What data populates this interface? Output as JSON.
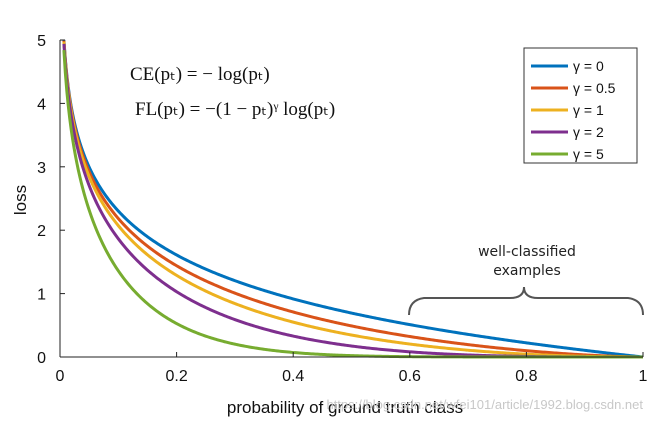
{
  "chart_data": {
    "type": "line",
    "x_range": [
      0,
      1
    ],
    "ylim": [
      0,
      5
    ],
    "xlabel": "probability of ground truth class",
    "ylabel": "loss",
    "x_ticks": [
      "0",
      "0.2",
      "0.4",
      "0.6",
      "0.8",
      "1"
    ],
    "y_ticks": [
      "0",
      "1",
      "2",
      "3",
      "4",
      "5"
    ],
    "grid": false,
    "legend_position": "top-right",
    "formulas": [
      "CE(pₜ) = − log(pₜ)",
      "FL(pₜ) = −(1 − pₜ)ᵞ log(pₜ)"
    ],
    "annotation": {
      "line1": "well-classified",
      "line2": "examples",
      "x_span": [
        0.6,
        1.0
      ]
    },
    "x": [
      0.0067,
      0.01,
      0.02,
      0.05,
      0.1,
      0.2,
      0.3,
      0.4,
      0.5,
      0.6,
      0.7,
      0.8,
      0.9,
      1.0
    ],
    "series": [
      {
        "name": "γ = 0",
        "gamma": 0,
        "color": "#0072BD",
        "values": [
          5.0,
          4.61,
          3.91,
          3.0,
          2.3,
          1.61,
          1.2,
          0.92,
          0.69,
          0.51,
          0.36,
          0.22,
          0.11,
          0.0
        ]
      },
      {
        "name": "γ = 0.5",
        "gamma": 0.5,
        "color": "#D95319",
        "values": [
          4.98,
          4.58,
          3.87,
          2.92,
          2.18,
          1.44,
          1.0,
          0.71,
          0.49,
          0.32,
          0.2,
          0.1,
          0.03,
          0.0
        ]
      },
      {
        "name": "γ = 1",
        "gamma": 1,
        "color": "#EDB120",
        "values": [
          4.97,
          4.56,
          3.83,
          2.85,
          2.07,
          1.29,
          0.84,
          0.55,
          0.35,
          0.2,
          0.11,
          0.04,
          0.01,
          0.0
        ]
      },
      {
        "name": "γ = 2",
        "gamma": 2,
        "color": "#7E2F8E",
        "values": [
          4.93,
          4.52,
          3.76,
          2.7,
          1.87,
          1.03,
          0.59,
          0.33,
          0.17,
          0.08,
          0.03,
          0.01,
          0.0,
          0.0
        ]
      },
      {
        "name": "γ = 5",
        "gamma": 5,
        "color": "#77AC30",
        "values": [
          4.84,
          4.38,
          3.54,
          2.32,
          1.36,
          0.53,
          0.2,
          0.07,
          0.02,
          0.01,
          0.0,
          0.0,
          0.0,
          0.0
        ]
      }
    ]
  },
  "watermark": "https://blog.csdn.net/wfei101/article/1992.blog.csdn.net"
}
